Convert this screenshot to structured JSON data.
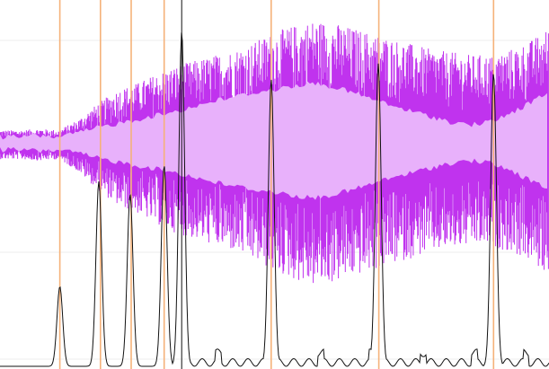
{
  "visualizer": {
    "colors": {
      "background": "#ffffff",
      "waveform_outer": "#c033ee",
      "waveform_inner": "#e8b1fb",
      "onset_curve": "#111111",
      "onset_marker": "#f5b27a",
      "playhead": "#111111",
      "grid": "#eeeeee"
    },
    "envelope_levels": [
      0.1,
      0.1,
      0.11,
      0.1,
      0.18,
      0.3,
      0.4,
      0.45,
      0.52,
      0.58,
      0.62,
      0.66,
      0.7,
      0.76,
      0.83,
      0.88,
      0.92,
      0.9,
      0.86,
      0.82,
      0.78,
      0.74,
      0.7,
      0.68,
      0.66,
      0.66,
      0.7,
      0.76,
      0.86
    ],
    "inner_levels": [
      0.05,
      0.05,
      0.06,
      0.05,
      0.08,
      0.12,
      0.15,
      0.18,
      0.21,
      0.24,
      0.28,
      0.32,
      0.35,
      0.38,
      0.4,
      0.43,
      0.45,
      0.42,
      0.38,
      0.33,
      0.28,
      0.24,
      0.2,
      0.16,
      0.14,
      0.16,
      0.22,
      0.3,
      0.38
    ],
    "onset_peaks": [
      {
        "time": 0.109,
        "strength": 0.25
      },
      {
        "time": 0.18,
        "strength": 0.58
      },
      {
        "time": 0.237,
        "strength": 0.54
      },
      {
        "time": 0.299,
        "strength": 0.63
      },
      {
        "time": 0.331,
        "strength": 1.05
      },
      {
        "time": 0.494,
        "strength": 0.9
      },
      {
        "time": 0.689,
        "strength": 0.95
      },
      {
        "time": 0.899,
        "strength": 0.92
      }
    ],
    "onset_markers": [
      0.109,
      0.183,
      0.239,
      0.299,
      0.494,
      0.69,
      0.899
    ],
    "playhead_position": 0.331
  }
}
